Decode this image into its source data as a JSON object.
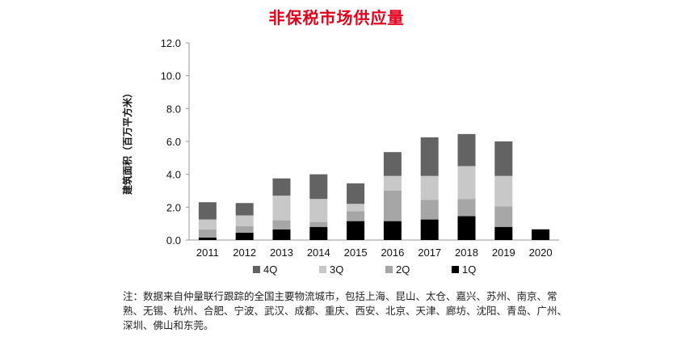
{
  "chart_data": {
    "type": "bar",
    "stacked": true,
    "title": "非保税市场供应量",
    "xlabel": "",
    "ylabel": "建筑面积（百万平方米）",
    "ylim": [
      0,
      12
    ],
    "yticks": [
      "0.0",
      "2.0",
      "4.0",
      "6.0",
      "8.0",
      "10.0",
      "12.0"
    ],
    "categories": [
      "2011",
      "2012",
      "2013",
      "2014",
      "2015",
      "2016",
      "2017",
      "2018",
      "2019",
      "2020"
    ],
    "series": [
      {
        "name": "1Q",
        "color": "#000000",
        "values": [
          0.15,
          0.45,
          0.65,
          0.8,
          1.15,
          1.15,
          1.25,
          1.45,
          0.8,
          0.65
        ]
      },
      {
        "name": "2Q",
        "color": "#a6a6a6",
        "values": [
          0.5,
          0.4,
          0.55,
          0.3,
          0.6,
          1.85,
          1.2,
          1.05,
          1.25,
          0
        ]
      },
      {
        "name": "3Q",
        "color": "#c8c8c8",
        "values": [
          0.6,
          0.65,
          1.5,
          1.4,
          0.45,
          0.9,
          1.45,
          2.0,
          1.85,
          0
        ]
      },
      {
        "name": "4Q",
        "color": "#636363",
        "values": [
          1.05,
          0.75,
          1.05,
          1.5,
          1.25,
          1.45,
          2.35,
          1.95,
          2.1,
          0
        ]
      }
    ],
    "legend_order": [
      "4Q",
      "3Q",
      "2Q",
      "1Q"
    ],
    "legend_position": "bottom",
    "grid": false
  },
  "note": "注：数据来自仲量联行跟踪的全国主要物流城市，包括上海、昆山、太仓、嘉兴、苏州、南京、常熟、无锡、杭州、合肥、宁波、武汉、成都、重庆、西安、北京、天津、廊坊、沈阳、青岛、广州、深圳、佛山和东莞。"
}
